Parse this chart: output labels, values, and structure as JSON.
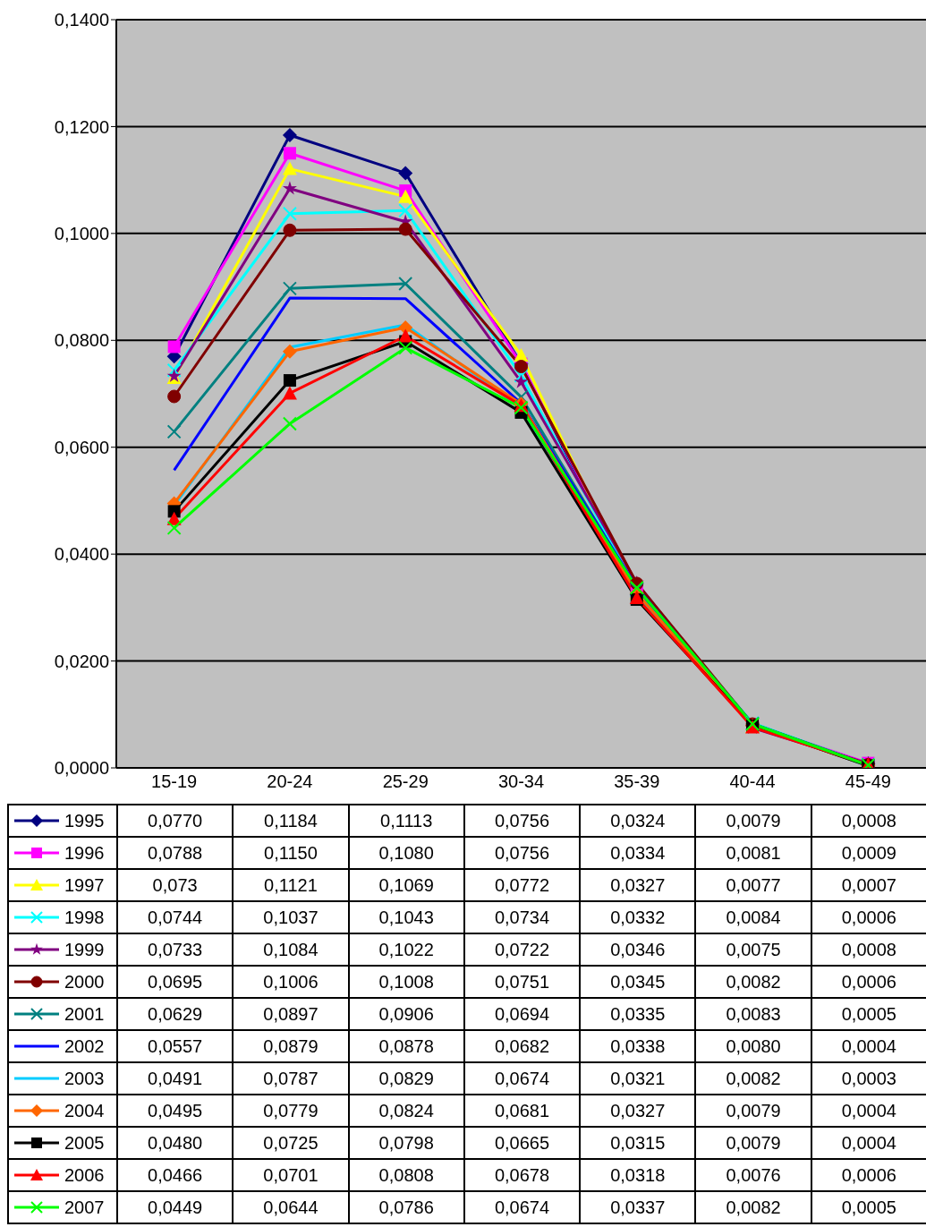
{
  "chart_data": {
    "type": "line",
    "categories": [
      "15-19",
      "20-24",
      "25-29",
      "30-34",
      "35-39",
      "40-44",
      "45-49"
    ],
    "ylim": [
      0,
      0.14
    ],
    "yticks": [
      {
        "value": 0,
        "label": "0,0000"
      },
      {
        "value": 0.02,
        "label": "0,0200"
      },
      {
        "value": 0.04,
        "label": "0,0400"
      },
      {
        "value": 0.06,
        "label": "0,0600"
      },
      {
        "value": 0.08,
        "label": "0,0800"
      },
      {
        "value": 0.1,
        "label": "0,1000"
      },
      {
        "value": 0.12,
        "label": "0,1200"
      },
      {
        "value": 0.14,
        "label": "0,1400"
      }
    ],
    "grid": "y",
    "legend": "bottom",
    "series": [
      {
        "name": "1995",
        "color": "#000080",
        "marker": "diamond",
        "values": [
          0.077,
          0.1184,
          0.1113,
          0.0756,
          0.0324,
          0.0079,
          0.0008
        ],
        "value_labels": [
          "0,0770",
          "0,1184",
          "0,1113",
          "0,0756",
          "0,0324",
          "0,0079",
          "0,0008"
        ]
      },
      {
        "name": "1996",
        "color": "#ff00ff",
        "marker": "square",
        "values": [
          0.0788,
          0.115,
          0.108,
          0.0756,
          0.0334,
          0.0081,
          0.0009
        ],
        "value_labels": [
          "0,0788",
          "0,1150",
          "0,1080",
          "0,0756",
          "0,0334",
          "0,0081",
          "0,0009"
        ]
      },
      {
        "name": "1997",
        "color": "#ffff00",
        "marker": "triangle",
        "values": [
          0.073,
          0.1121,
          0.1069,
          0.0772,
          0.0327,
          0.0077,
          0.0007
        ],
        "value_labels": [
          "0,073",
          "0,1121",
          "0,1069",
          "0,0772",
          "0,0327",
          "0,0077",
          "0,0007"
        ]
      },
      {
        "name": "1998",
        "color": "#00ffff",
        "marker": "cross",
        "values": [
          0.0744,
          0.1037,
          0.1043,
          0.0734,
          0.0332,
          0.0084,
          0.0006
        ],
        "value_labels": [
          "0,0744",
          "0,1037",
          "0,1043",
          "0,0734",
          "0,0332",
          "0,0084",
          "0,0006"
        ]
      },
      {
        "name": "1999",
        "color": "#800080",
        "marker": "star",
        "values": [
          0.0733,
          0.1084,
          0.1022,
          0.0722,
          0.0346,
          0.0075,
          0.0008
        ],
        "value_labels": [
          "0,0733",
          "0,1084",
          "0,1022",
          "0,0722",
          "0,0346",
          "0,0075",
          "0,0008"
        ]
      },
      {
        "name": "2000",
        "color": "#800000",
        "marker": "circle",
        "values": [
          0.0695,
          0.1006,
          0.1008,
          0.0751,
          0.0345,
          0.0082,
          0.0006
        ],
        "value_labels": [
          "0,0695",
          "0,1006",
          "0,1008",
          "0,0751",
          "0,0345",
          "0,0082",
          "0,0006"
        ]
      },
      {
        "name": "2001",
        "color": "#008080",
        "marker": "cross",
        "values": [
          0.0629,
          0.0897,
          0.0906,
          0.0694,
          0.0335,
          0.0083,
          0.0005
        ],
        "value_labels": [
          "0,0629",
          "0,0897",
          "0,0906",
          "0,0694",
          "0,0335",
          "0,0083",
          "0,0005"
        ]
      },
      {
        "name": "2002",
        "color": "#0000ff",
        "marker": "none",
        "values": [
          0.0557,
          0.0879,
          0.0878,
          0.0682,
          0.0338,
          0.008,
          0.0004
        ],
        "value_labels": [
          "0,0557",
          "0,0879",
          "0,0878",
          "0,0682",
          "0,0338",
          "0,0080",
          "0,0004"
        ]
      },
      {
        "name": "2003",
        "color": "#00ccff",
        "marker": "none",
        "values": [
          0.0491,
          0.0787,
          0.0829,
          0.0674,
          0.0321,
          0.0082,
          0.0003
        ],
        "value_labels": [
          "0,0491",
          "0,0787",
          "0,0829",
          "0,0674",
          "0,0321",
          "0,0082",
          "0,0003"
        ]
      },
      {
        "name": "2004",
        "color": "#ff6600",
        "marker": "diamond",
        "values": [
          0.0495,
          0.0779,
          0.0824,
          0.0681,
          0.0327,
          0.0079,
          0.0004
        ],
        "value_labels": [
          "0,0495",
          "0,0779",
          "0,0824",
          "0,0681",
          "0,0327",
          "0,0079",
          "0,0004"
        ]
      },
      {
        "name": "2005",
        "color": "#000000",
        "marker": "square",
        "values": [
          0.048,
          0.0725,
          0.0798,
          0.0665,
          0.0315,
          0.0079,
          0.0004
        ],
        "value_labels": [
          "0,0480",
          "0,0725",
          "0,0798",
          "0,0665",
          "0,0315",
          "0,0079",
          "0,0004"
        ]
      },
      {
        "name": "2006",
        "color": "#ff0000",
        "marker": "triangle",
        "values": [
          0.0466,
          0.0701,
          0.0808,
          0.0678,
          0.0318,
          0.0076,
          0.0006
        ],
        "value_labels": [
          "0,0466",
          "0,0701",
          "0,0808",
          "0,0678",
          "0,0318",
          "0,0076",
          "0,0006"
        ]
      },
      {
        "name": "2007",
        "color": "#00ff00",
        "marker": "cross",
        "values": [
          0.0449,
          0.0644,
          0.0786,
          0.0674,
          0.0337,
          0.0082,
          0.0005
        ],
        "value_labels": [
          "0,0449",
          "0,0644",
          "0,0786",
          "0,0674",
          "0,0337",
          "0,0082",
          "0,0005"
        ]
      }
    ]
  }
}
